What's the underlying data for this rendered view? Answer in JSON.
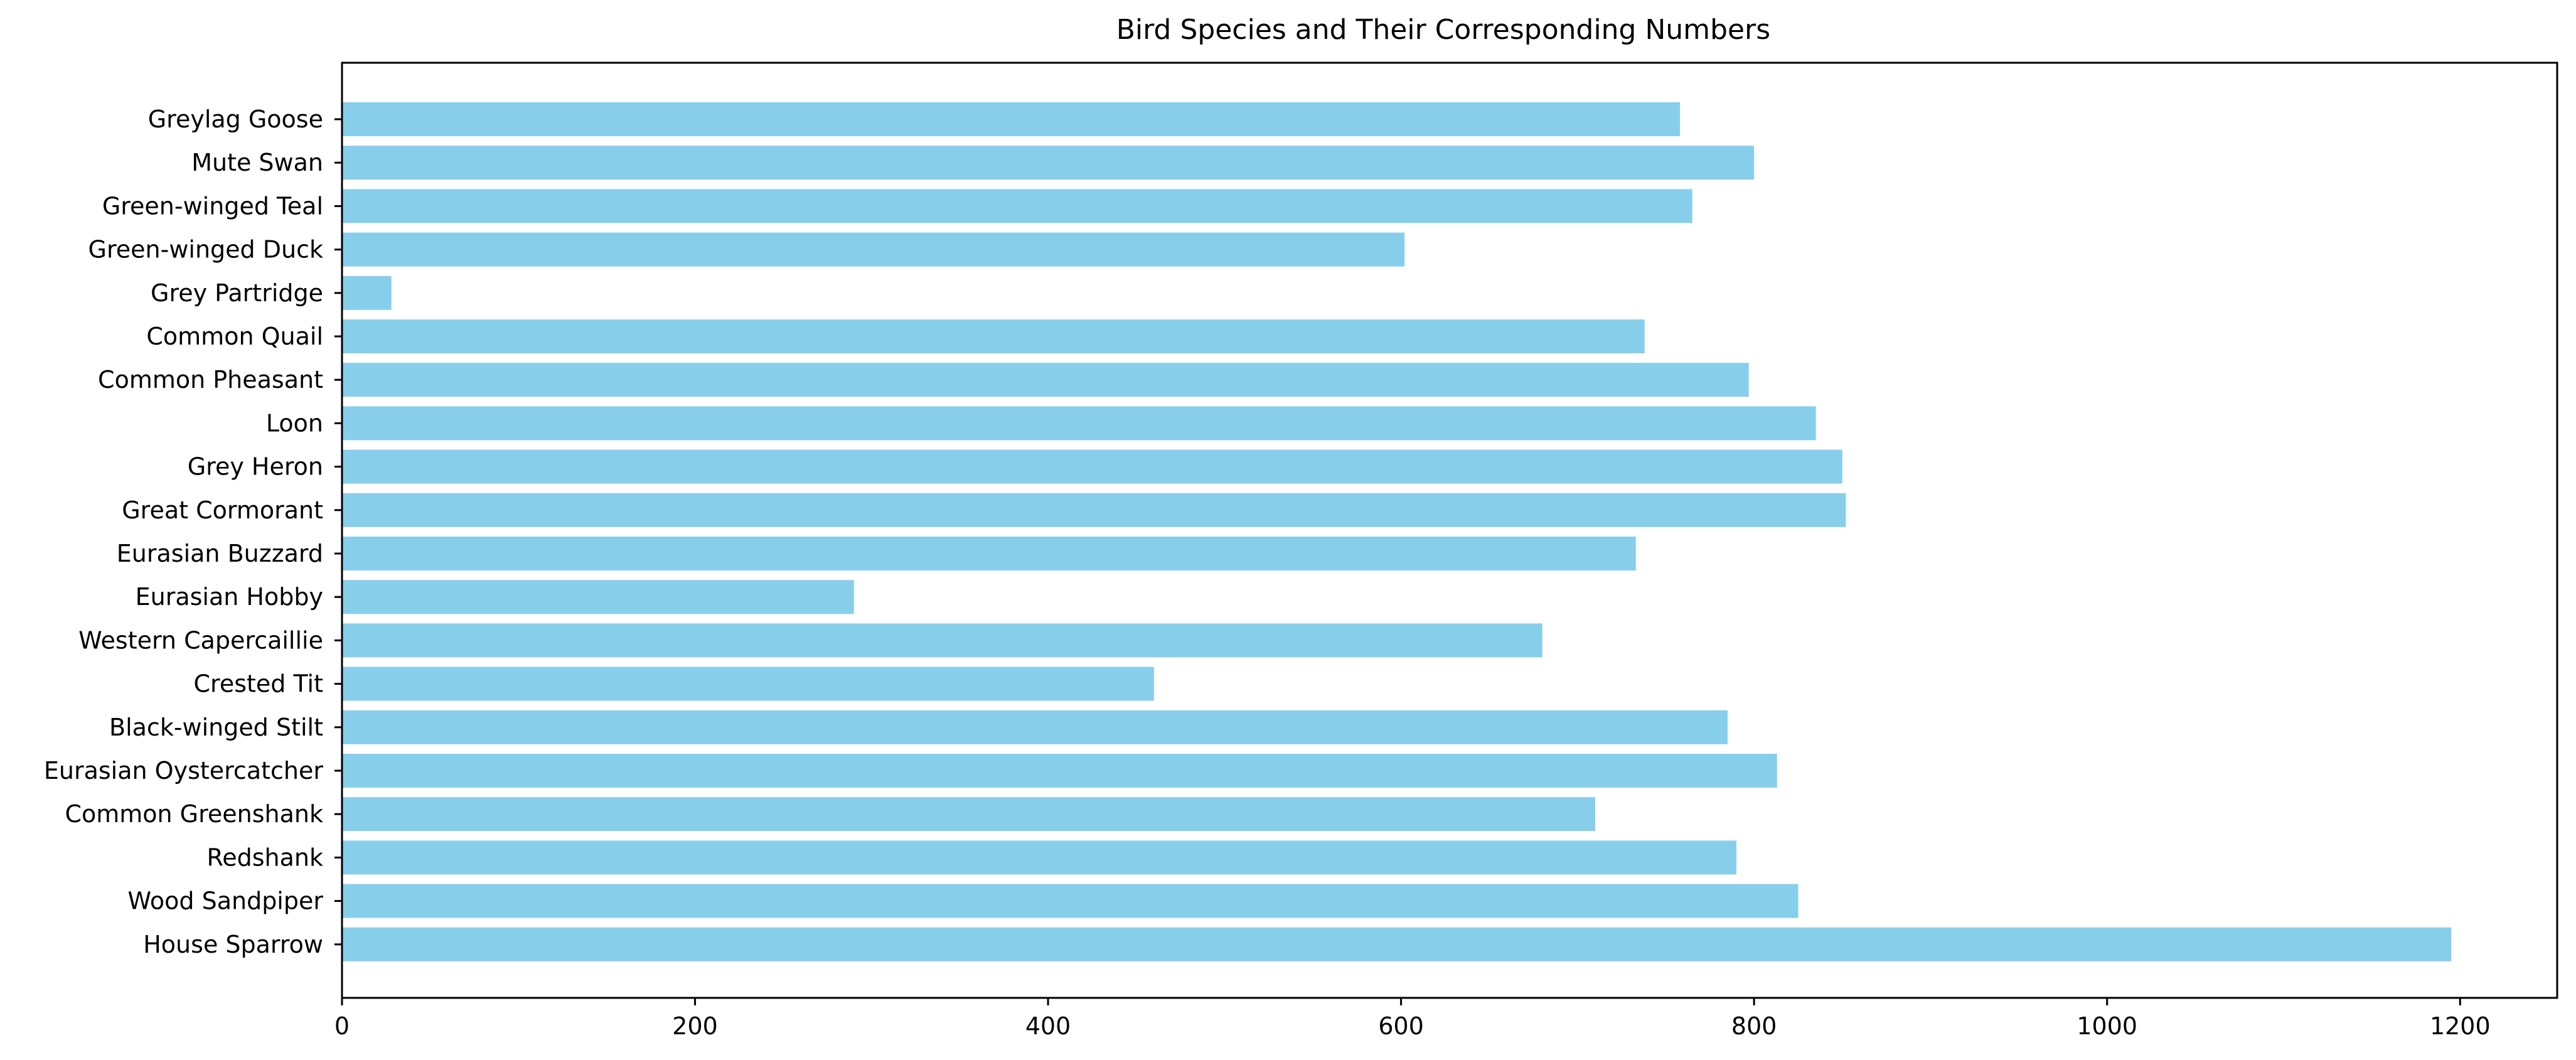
{
  "chart_data": {
    "type": "bar",
    "orientation": "horizontal",
    "title": "Bird Species and Their Corresponding Numbers",
    "xlabel": "",
    "ylabel": "",
    "xlim": [
      0,
      1255
    ],
    "grid": false,
    "bar_color": "#87ceeb",
    "x_ticks": [
      "0",
      "200",
      "400",
      "600",
      "800",
      "1000",
      "1200"
    ],
    "categories": [
      "Greylag Goose",
      "Mute Swan",
      "Green-winged Teal",
      "Green-winged Duck",
      "Grey Partridge",
      "Common Quail",
      "Common Pheasant",
      "Loon",
      "Grey Heron",
      "Great Cormorant",
      "Eurasian Buzzard",
      "Eurasian Hobby",
      "Western Capercaillie",
      "Crested Tit",
      "Black-winged Stilt",
      "Eurasian Oystercatcher",
      "Common Greenshank",
      "Redshank",
      "Wood Sandpiper",
      "House Sparrow"
    ],
    "values": [
      758,
      800,
      765,
      602,
      28,
      738,
      797,
      835,
      850,
      852,
      733,
      290,
      680,
      460,
      785,
      813,
      710,
      790,
      825,
      1195
    ]
  }
}
